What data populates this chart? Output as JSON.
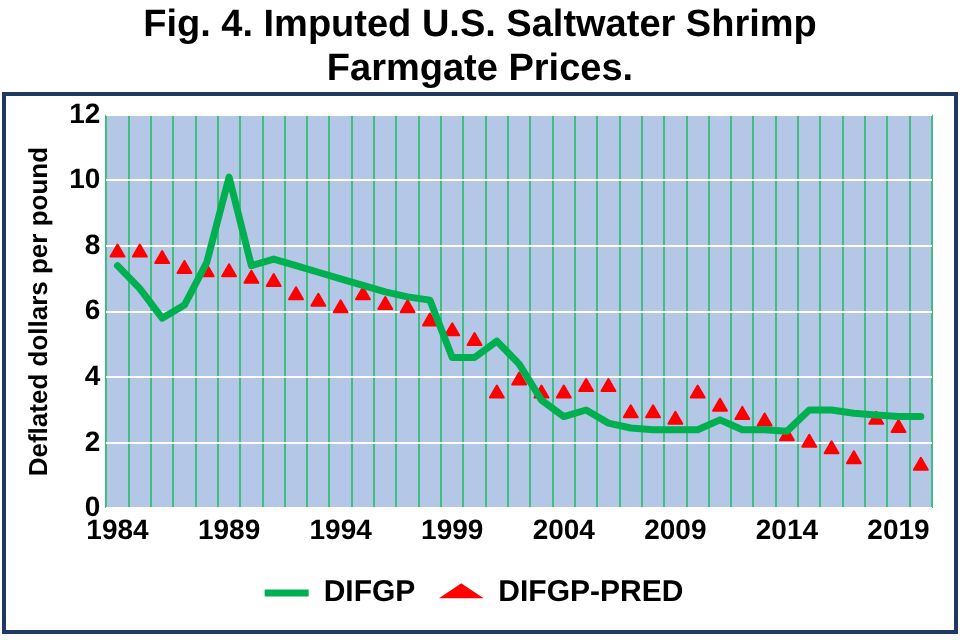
{
  "chart_data": {
    "type": "line",
    "title": "Fig. 4. Imputed U.S. Saltwater Shrimp Farmgate Prices.",
    "ylabel": "Deflated dollars per pound",
    "categories": [
      "1984",
      null,
      null,
      null,
      null,
      "1989",
      null,
      null,
      null,
      null,
      "1994",
      null,
      null,
      null,
      null,
      "1999",
      null,
      null,
      null,
      null,
      "2004",
      null,
      null,
      null,
      null,
      "2009",
      null,
      null,
      null,
      null,
      "2014",
      null,
      null,
      null,
      null,
      "2019",
      null
    ],
    "series": [
      {
        "name": "DIFGP",
        "color": "#00b050",
        "marker": "none",
        "values": [
          7.4,
          6.7,
          5.8,
          6.2,
          7.5,
          10.1,
          7.4,
          7.6,
          7.4,
          7.2,
          7.0,
          6.8,
          6.6,
          6.45,
          6.35,
          4.6,
          4.6,
          5.1,
          4.4,
          3.3,
          2.8,
          3.0,
          2.6,
          2.45,
          2.4,
          2.4,
          2.4,
          2.7,
          2.4,
          2.4,
          2.35,
          3.0,
          3.0,
          2.9,
          2.85,
          2.8,
          2.8
        ]
      },
      {
        "name": "DIFGP-PRED",
        "type": "scatter",
        "color": "#ff0000",
        "marker": "triangle",
        "values": [
          7.8,
          7.8,
          7.6,
          7.3,
          7.2,
          7.2,
          7.0,
          6.9,
          6.5,
          6.3,
          6.1,
          6.5,
          6.2,
          6.1,
          5.7,
          5.4,
          5.1,
          3.5,
          3.9,
          3.5,
          3.5,
          3.7,
          3.7,
          2.9,
          2.9,
          2.7,
          3.5,
          3.1,
          2.85,
          2.65,
          2.2,
          2.0,
          1.8,
          1.5,
          2.7,
          2.45,
          1.3
        ]
      }
    ],
    "ylim": [
      0,
      12
    ],
    "yticks": [
      0,
      2,
      4,
      6,
      8,
      10,
      12
    ],
    "grid": true,
    "legend": "bottom"
  }
}
